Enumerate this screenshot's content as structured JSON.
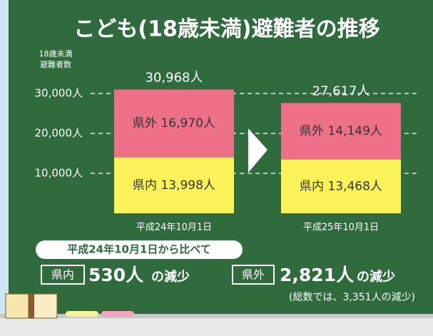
{
  "chart_data": {
    "type": "stacked-bar",
    "title": "こども(18歳未満)避難者の推移",
    "ylabel": [
      "18歳未満",
      "避難者数"
    ],
    "categories": [
      "平成24年10月1日",
      "平成25年10月1日"
    ],
    "series": [
      {
        "name": "県内",
        "color": "#fbf25a",
        "values": [
          13998,
          13468
        ],
        "value_labels": [
          "県内 13,998人",
          "県内 13,468人"
        ]
      },
      {
        "name": "県外",
        "color": "#ee7088",
        "values": [
          16970,
          14149
        ],
        "value_labels": [
          "県外 16,970人",
          "県外 14,149人"
        ]
      }
    ],
    "totals": {
      "values": [
        30968,
        27617
      ],
      "value_labels": [
        "30,968人",
        "27,617人"
      ]
    },
    "ylim": [
      0,
      35000
    ],
    "yticks": [
      {
        "value": 10000,
        "label": "10,000人"
      },
      {
        "value": 20000,
        "label": "20,000人"
      },
      {
        "value": 30000,
        "label": "30,000人"
      }
    ],
    "grid": true,
    "annotations": {
      "heading": "平成24年10月1日から比べて",
      "items": [
        {
          "tag": "県内",
          "amount": "530人",
          "suffix": "の減少"
        },
        {
          "tag": "県外",
          "amount": "2,821人",
          "suffix": "の減少"
        }
      ],
      "note": "(総数では、3,351人の減少)"
    }
  }
}
